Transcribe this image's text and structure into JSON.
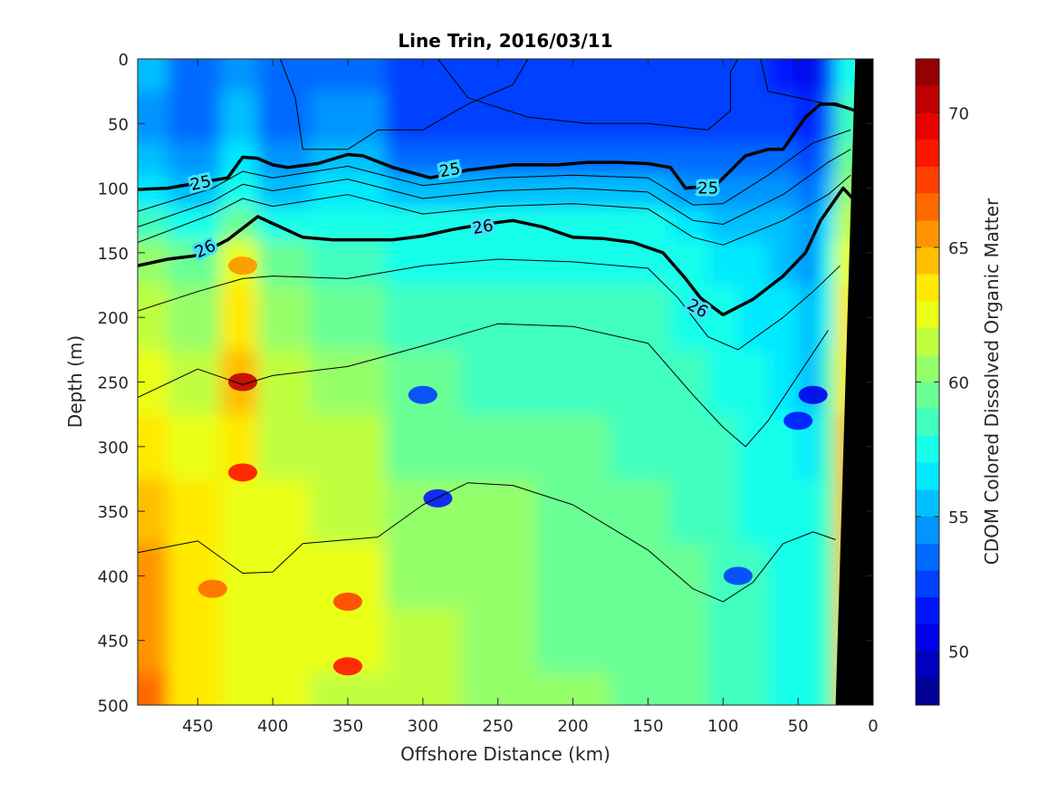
{
  "chart_data": {
    "type": "heatmap",
    "title": "Line Trin, 2016/03/11",
    "xlabel": "Offshore Distance (km)",
    "ylabel": "Depth (m)",
    "colorbar_label": "CDOM Colored Dissolved Organic Matter",
    "x_reversed": true,
    "y_reversed": true,
    "xlim": [
      490,
      0
    ],
    "ylim": [
      0,
      500
    ],
    "clim": [
      48,
      72
    ],
    "colormap": "jet",
    "x_ticks": [
      450,
      400,
      350,
      300,
      250,
      200,
      150,
      100,
      50,
      0
    ],
    "x_tick_labels": [
      "450",
      "400",
      "350",
      "300",
      "250",
      "200",
      "150",
      "100",
      "50",
      "0"
    ],
    "y_ticks": [
      0,
      50,
      100,
      150,
      200,
      250,
      300,
      350,
      400,
      450,
      500
    ],
    "y_tick_labels": [
      "0",
      "50",
      "100",
      "150",
      "200",
      "250",
      "300",
      "350",
      "400",
      "450",
      "500"
    ],
    "colorbar_ticks": [
      50,
      55,
      60,
      65,
      70
    ],
    "colorbar_tick_labels": [
      "50",
      "55",
      "60",
      "65",
      "70"
    ],
    "field_grid": {
      "x": [
        490,
        450,
        420,
        400,
        350,
        300,
        250,
        200,
        150,
        120,
        100,
        80,
        60,
        40,
        30,
        20
      ],
      "depth": [
        0,
        50,
        80,
        100,
        130,
        150,
        200,
        250,
        300,
        350,
        400,
        450,
        500
      ],
      "values": [
        [
          55,
          53,
          54,
          53,
          53,
          52,
          52,
          52,
          52,
          52,
          52,
          52,
          51,
          50,
          52,
          57
        ],
        [
          54,
          53,
          55,
          53,
          54,
          52,
          52,
          52,
          52,
          52,
          52,
          52,
          52,
          51,
          53,
          58
        ],
        [
          55,
          54,
          56,
          54,
          55,
          53,
          53,
          53,
          53,
          53,
          53,
          53,
          53,
          52,
          54,
          59
        ],
        [
          56,
          55,
          57,
          55,
          56,
          55,
          55,
          55,
          55,
          54,
          54,
          54,
          54,
          53,
          55,
          60
        ],
        [
          58,
          57,
          59,
          57,
          57,
          57,
          57,
          57,
          57,
          56,
          55,
          55,
          55,
          54,
          56,
          61
        ],
        [
          60,
          59,
          62,
          59,
          58,
          57,
          57,
          57,
          57,
          57,
          56,
          56,
          55,
          54,
          57,
          62
        ],
        [
          61,
          60,
          63,
          60,
          59,
          58,
          58,
          58,
          58,
          57,
          57,
          56,
          56,
          55,
          57,
          63
        ],
        [
          62,
          61,
          64,
          61,
          60,
          59,
          58,
          58,
          58,
          58,
          57,
          57,
          56,
          55,
          58,
          63
        ],
        [
          63,
          62,
          63,
          61,
          61,
          59,
          59,
          59,
          58,
          58,
          58,
          57,
          57,
          56,
          58,
          64
        ],
        [
          64,
          63,
          62,
          62,
          61,
          60,
          60,
          59,
          59,
          58,
          58,
          57,
          57,
          57,
          58,
          64
        ],
        [
          65,
          63,
          62,
          62,
          62,
          60,
          60,
          59,
          59,
          59,
          58,
          58,
          57,
          57,
          58,
          64
        ],
        [
          65,
          63,
          62,
          62,
          62,
          61,
          60,
          59,
          59,
          59,
          58,
          58,
          57,
          57,
          58,
          64
        ],
        [
          66,
          63,
          62,
          62,
          61,
          61,
          60,
          60,
          59,
          59,
          58,
          58,
          57,
          57,
          58,
          64
        ]
      ]
    },
    "hotspots": [
      {
        "x": 420,
        "depth": 250,
        "value": 70
      },
      {
        "x": 420,
        "depth": 320,
        "value": 68
      },
      {
        "x": 420,
        "depth": 160,
        "value": 65
      },
      {
        "x": 350,
        "depth": 420,
        "value": 67
      },
      {
        "x": 350,
        "depth": 470,
        "value": 68
      },
      {
        "x": 440,
        "depth": 410,
        "value": 66
      },
      {
        "x": 40,
        "depth": 260,
        "value": 50
      },
      {
        "x": 50,
        "depth": 280,
        "value": 51
      },
      {
        "x": 290,
        "depth": 340,
        "value": 51
      },
      {
        "x": 300,
        "depth": 260,
        "value": 52
      },
      {
        "x": 90,
        "depth": 400,
        "value": 52
      }
    ],
    "contours": [
      {
        "level": "",
        "bold": false,
        "points": [
          [
            395,
            0
          ],
          [
            385,
            30
          ],
          [
            380,
            70
          ],
          [
            350,
            70
          ],
          [
            330,
            55
          ],
          [
            300,
            55
          ],
          [
            270,
            35
          ],
          [
            240,
            20
          ],
          [
            230,
            0
          ]
        ]
      },
      {
        "level": "",
        "bold": false,
        "points": [
          [
            290,
            0
          ],
          [
            270,
            30
          ],
          [
            230,
            45
          ],
          [
            190,
            50
          ],
          [
            150,
            50
          ],
          [
            110,
            55
          ],
          [
            95,
            40
          ],
          [
            95,
            10
          ],
          [
            90,
            0
          ]
        ]
      },
      {
        "level": "",
        "bold": false,
        "points": [
          [
            75,
            0
          ],
          [
            70,
            25
          ],
          [
            50,
            30
          ],
          [
            30,
            35
          ],
          [
            12,
            40
          ]
        ]
      },
      {
        "level": "25",
        "bold": true,
        "points": [
          [
            490,
            101
          ],
          [
            470,
            100
          ],
          [
            450,
            96
          ],
          [
            430,
            92
          ],
          [
            420,
            76
          ],
          [
            410,
            77
          ],
          [
            400,
            82
          ],
          [
            390,
            84
          ],
          [
            370,
            81
          ],
          [
            350,
            74
          ],
          [
            340,
            75
          ],
          [
            320,
            84
          ],
          [
            295,
            92
          ],
          [
            270,
            86
          ],
          [
            240,
            82
          ],
          [
            210,
            82
          ],
          [
            190,
            80
          ],
          [
            170,
            80
          ],
          [
            150,
            81
          ],
          [
            135,
            84
          ],
          [
            125,
            100
          ],
          [
            105,
            98
          ],
          [
            85,
            75
          ],
          [
            70,
            70
          ],
          [
            60,
            70
          ],
          [
            45,
            45
          ],
          [
            35,
            35
          ],
          [
            25,
            35
          ],
          [
            12,
            40
          ]
        ]
      },
      {
        "level": "",
        "bold": false,
        "points": [
          [
            490,
            118
          ],
          [
            440,
            100
          ],
          [
            420,
            87
          ],
          [
            400,
            92
          ],
          [
            350,
            83
          ],
          [
            300,
            98
          ],
          [
            250,
            92
          ],
          [
            200,
            90
          ],
          [
            150,
            92
          ],
          [
            120,
            113
          ],
          [
            100,
            112
          ],
          [
            70,
            90
          ],
          [
            40,
            65
          ],
          [
            15,
            55
          ]
        ]
      },
      {
        "level": "",
        "bold": false,
        "points": [
          [
            490,
            130
          ],
          [
            440,
            110
          ],
          [
            420,
            97
          ],
          [
            400,
            102
          ],
          [
            350,
            93
          ],
          [
            300,
            108
          ],
          [
            250,
            102
          ],
          [
            200,
            100
          ],
          [
            150,
            103
          ],
          [
            120,
            125
          ],
          [
            100,
            128
          ],
          [
            60,
            105
          ],
          [
            30,
            80
          ],
          [
            15,
            70
          ]
        ]
      },
      {
        "level": "",
        "bold": false,
        "points": [
          [
            490,
            142
          ],
          [
            440,
            120
          ],
          [
            420,
            108
          ],
          [
            400,
            114
          ],
          [
            350,
            105
          ],
          [
            300,
            120
          ],
          [
            250,
            114
          ],
          [
            200,
            112
          ],
          [
            150,
            116
          ],
          [
            120,
            138
          ],
          [
            100,
            144
          ],
          [
            60,
            125
          ],
          [
            30,
            105
          ],
          [
            15,
            90
          ]
        ]
      },
      {
        "level": "26",
        "bold": true,
        "points": [
          [
            490,
            160
          ],
          [
            470,
            155
          ],
          [
            450,
            152
          ],
          [
            430,
            140
          ],
          [
            410,
            122
          ],
          [
            395,
            130
          ],
          [
            380,
            138
          ],
          [
            360,
            140
          ],
          [
            340,
            140
          ],
          [
            320,
            140
          ],
          [
            300,
            137
          ],
          [
            280,
            132
          ],
          [
            260,
            128
          ],
          [
            240,
            125
          ],
          [
            220,
            130
          ],
          [
            200,
            138
          ],
          [
            180,
            139
          ],
          [
            160,
            142
          ],
          [
            140,
            150
          ],
          [
            125,
            170
          ],
          [
            115,
            185
          ],
          [
            100,
            198
          ],
          [
            80,
            186
          ],
          [
            60,
            168
          ],
          [
            45,
            150
          ],
          [
            35,
            125
          ],
          [
            20,
            100
          ],
          [
            12,
            110
          ]
        ]
      },
      {
        "level": "",
        "bold": false,
        "points": [
          [
            490,
            195
          ],
          [
            450,
            180
          ],
          [
            420,
            170
          ],
          [
            400,
            168
          ],
          [
            350,
            170
          ],
          [
            300,
            160
          ],
          [
            250,
            155
          ],
          [
            200,
            157
          ],
          [
            150,
            162
          ],
          [
            130,
            185
          ],
          [
            110,
            215
          ],
          [
            90,
            225
          ],
          [
            60,
            200
          ],
          [
            40,
            180
          ],
          [
            22,
            160
          ]
        ]
      },
      {
        "level": "",
        "bold": false,
        "points": [
          [
            490,
            262
          ],
          [
            450,
            240
          ],
          [
            420,
            252
          ],
          [
            400,
            245
          ],
          [
            350,
            238
          ],
          [
            300,
            222
          ],
          [
            250,
            205
          ],
          [
            200,
            207
          ],
          [
            150,
            220
          ],
          [
            120,
            260
          ],
          [
            100,
            285
          ],
          [
            85,
            300
          ],
          [
            70,
            280
          ],
          [
            50,
            245
          ],
          [
            30,
            210
          ]
        ]
      },
      {
        "level": "",
        "bold": false,
        "points": [
          [
            490,
            382
          ],
          [
            450,
            373
          ],
          [
            420,
            398
          ],
          [
            400,
            397
          ],
          [
            380,
            375
          ],
          [
            330,
            370
          ],
          [
            300,
            345
          ],
          [
            270,
            328
          ],
          [
            240,
            330
          ],
          [
            200,
            345
          ],
          [
            150,
            380
          ],
          [
            120,
            410
          ],
          [
            100,
            420
          ],
          [
            80,
            405
          ],
          [
            60,
            375
          ],
          [
            40,
            366
          ],
          [
            25,
            372
          ]
        ]
      }
    ],
    "contour_labels": [
      {
        "text": "25",
        "x": 448,
        "depth": 96,
        "angle": -12
      },
      {
        "text": "25",
        "x": 282,
        "depth": 86,
        "angle": -10
      },
      {
        "text": "25",
        "x": 110,
        "depth": 100,
        "angle": 0
      },
      {
        "text": "26",
        "x": 445,
        "depth": 147,
        "angle": -25
      },
      {
        "text": "26",
        "x": 260,
        "depth": 130,
        "angle": -10
      },
      {
        "text": "26",
        "x": 117,
        "depth": 193,
        "angle": 30
      }
    ],
    "topography": [
      [
        12,
        0
      ],
      [
        12,
        5
      ],
      [
        25,
        500
      ],
      [
        0,
        500
      ],
      [
        0,
        0
      ]
    ]
  }
}
